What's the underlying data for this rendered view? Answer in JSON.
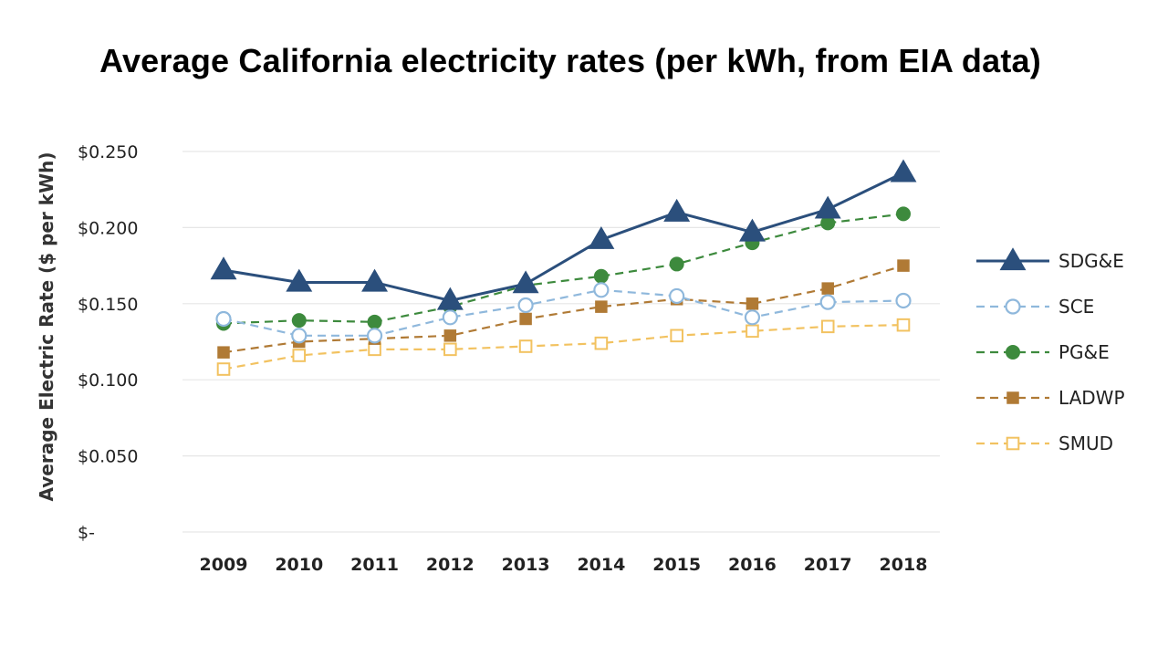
{
  "chart_data": {
    "type": "line",
    "title": "Average California electricity rates (per kWh, from EIA data)",
    "xlabel": "",
    "ylabel": "Average Electric Rate ($ per kWh)",
    "ylim": [
      0,
      0.25
    ],
    "yticks": [
      {
        "value": 0,
        "label": "$-"
      },
      {
        "value": 0.05,
        "label": "$0.050"
      },
      {
        "value": 0.1,
        "label": "$0.100"
      },
      {
        "value": 0.15,
        "label": "$0.150"
      },
      {
        "value": 0.2,
        "label": "$0.200"
      },
      {
        "value": 0.25,
        "label": "$0.250"
      }
    ],
    "categories": [
      "2009",
      "2010",
      "2011",
      "2012",
      "2013",
      "2014",
      "2015",
      "2016",
      "2017",
      "2018"
    ],
    "grid": true,
    "legend_position": "right",
    "series": [
      {
        "name": "SDG&E",
        "color": "#2b4f7c",
        "marker": "triangle-filled",
        "line": "solid",
        "values": [
          0.172,
          0.164,
          0.164,
          0.152,
          0.163,
          0.192,
          0.21,
          0.197,
          0.212,
          0.236
        ]
      },
      {
        "name": "SCE",
        "color": "#8fb8dc",
        "marker": "circle-open",
        "line": "dashed",
        "values": [
          0.14,
          0.129,
          0.129,
          0.141,
          0.149,
          0.159,
          0.155,
          0.141,
          0.151,
          0.152
        ]
      },
      {
        "name": "PG&E",
        "color": "#3d8a3d",
        "marker": "circle-filled",
        "line": "dashed",
        "values": [
          0.137,
          0.139,
          0.138,
          0.148,
          0.162,
          0.168,
          0.176,
          0.19,
          0.203,
          0.209
        ]
      },
      {
        "name": "LADWP",
        "color": "#b07a35",
        "marker": "square-filled",
        "line": "dashed",
        "values": [
          0.118,
          0.125,
          0.127,
          0.129,
          0.14,
          0.148,
          0.153,
          0.15,
          0.16,
          0.175
        ]
      },
      {
        "name": "SMUD",
        "color": "#f2c260",
        "marker": "square-open",
        "line": "dashed",
        "values": [
          0.107,
          0.116,
          0.12,
          0.12,
          0.122,
          0.124,
          0.129,
          0.132,
          0.135,
          0.136
        ]
      }
    ]
  }
}
